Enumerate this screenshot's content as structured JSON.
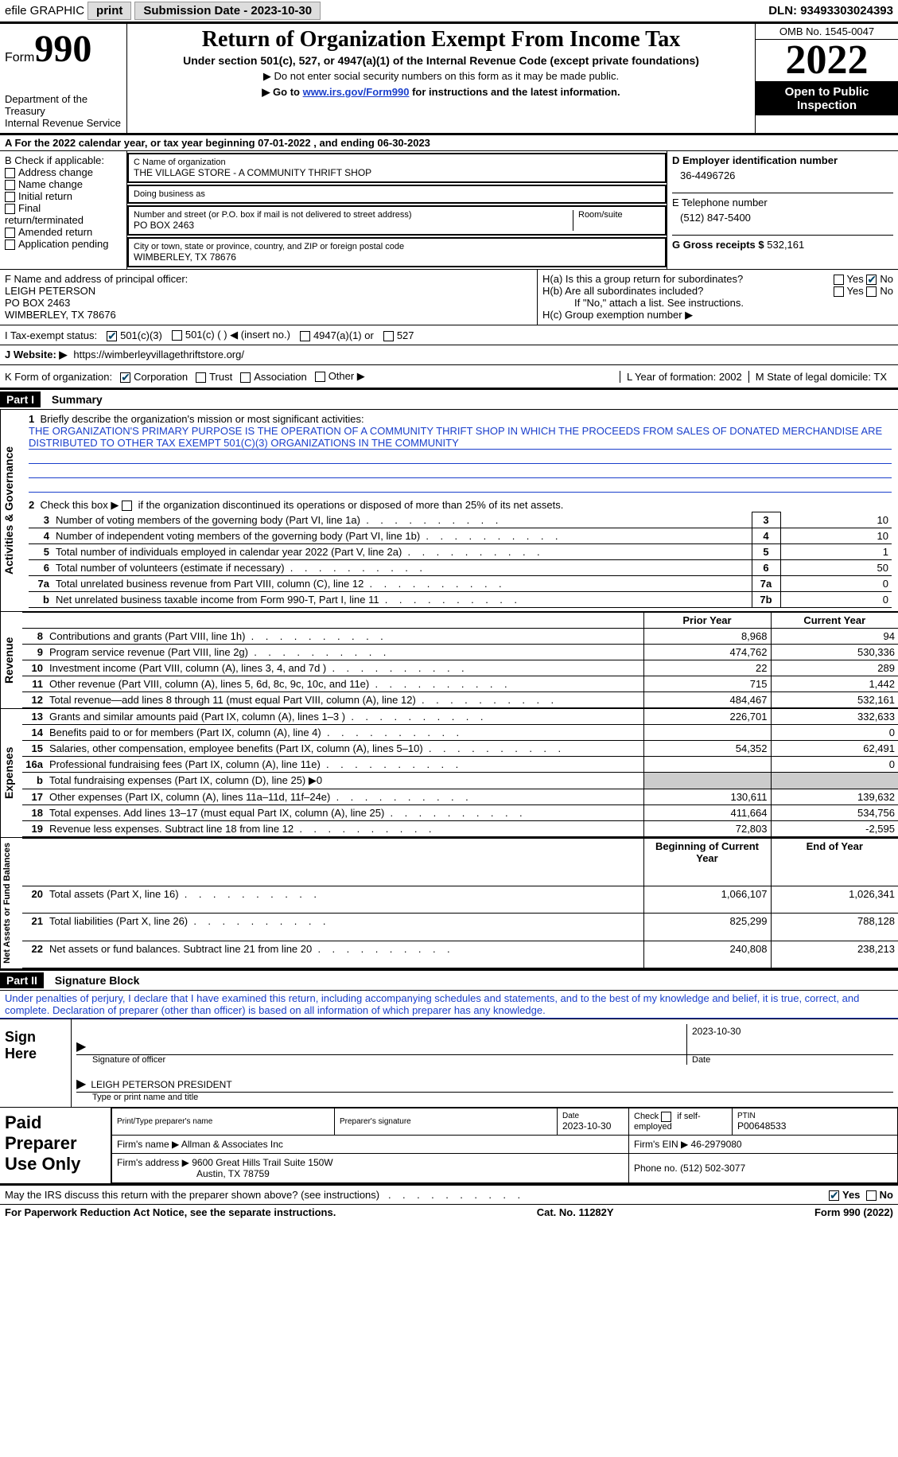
{
  "topbar": {
    "efile": "efile GRAPHIC",
    "print": "print",
    "submission_label": "Submission Date - 2023-10-30",
    "dln": "DLN: 93493303024393"
  },
  "header": {
    "form_word": "Form",
    "form_num": "990",
    "dept": "Department of the Treasury",
    "irs": "Internal Revenue Service",
    "title": "Return of Organization Exempt From Income Tax",
    "sub1": "Under section 501(c), 527, or 4947(a)(1) of the Internal Revenue Code (except private foundations)",
    "sub2": "▶ Do not enter social security numbers on this form as it may be made public.",
    "sub3_pre": "▶ Go to ",
    "sub3_link": "www.irs.gov/Form990",
    "sub3_post": " for instructions and the latest information.",
    "omb": "OMB No. 1545-0047",
    "year": "2022",
    "open": "Open to Public Inspection"
  },
  "line_a": "A  For the 2022 calendar year, or tax year beginning 07-01-2022    , and ending 06-30-2023",
  "block_b": {
    "label": "B Check if applicable:",
    "items": [
      "Address change",
      "Name change",
      "Initial return",
      "Final return/terminated",
      "Amended return",
      "Application pending"
    ]
  },
  "block_c": {
    "name_label": "C Name of organization",
    "name": "THE VILLAGE STORE - A COMMUNITY THRIFT SHOP",
    "dba_label": "Doing business as",
    "street_label": "Number and street (or P.O. box if mail is not delivered to street address)",
    "room_label": "Room/suite",
    "street": "PO BOX 2463",
    "city_label": "City or town, state or province, country, and ZIP or foreign postal code",
    "city": "WIMBERLEY, TX  78676"
  },
  "block_d": {
    "label": "D Employer identification number",
    "value": "36-4496726"
  },
  "block_e": {
    "label": "E Telephone number",
    "value": "(512) 847-5400"
  },
  "block_g": {
    "label": "G Gross receipts $",
    "value": "532,161"
  },
  "block_f": {
    "label": "F Name and address of principal officer:",
    "name": "LEIGH PETERSON",
    "street": "PO BOX 2463",
    "city": "WIMBERLEY, TX  78676"
  },
  "block_h": {
    "ha": "H(a)  Is this a group return for subordinates?",
    "hb": "H(b)  Are all subordinates included?",
    "hb_note": "If \"No,\" attach a list. See instructions.",
    "hc": "H(c)  Group exemption number ▶",
    "yes": "Yes",
    "no": "No"
  },
  "block_i": {
    "label": "I   Tax-exempt status:",
    "c3": "501(c)(3)",
    "c": "501(c) (  ) ◀ (insert no.)",
    "a1": "4947(a)(1) or",
    "s527": "527"
  },
  "block_j": {
    "label": "J   Website: ▶",
    "value": "https://wimberleyvillagethriftstore.org/"
  },
  "block_k": {
    "label": "K Form of organization:",
    "corp": "Corporation",
    "trust": "Trust",
    "assoc": "Association",
    "other": "Other ▶",
    "l_label": "L Year of formation:",
    "l_val": "2002",
    "m_label": "M State of legal domicile:",
    "m_val": "TX"
  },
  "part1": {
    "header": "Part I",
    "title": "Summary",
    "q1": "Briefly describe the organization's mission or most significant activities:",
    "mission": "THE ORGANIZATION'S PRIMARY PURPOSE IS THE OPERATION OF A COMMUNITY THRIFT SHOP IN WHICH THE PROCEEDS FROM SALES OF DONATED MERCHANDISE ARE DISTRIBUTED TO OTHER TAX EXEMPT 501(C)(3) ORGANIZATIONS IN THE COMMUNITY",
    "q2": "Check this box ▶    if the organization discontinued its operations or disposed of more than 25% of its net assets.",
    "lines": [
      {
        "n": "3",
        "t": "Number of voting members of the governing body (Part VI, line 1a)",
        "box": "3",
        "v": "10"
      },
      {
        "n": "4",
        "t": "Number of independent voting members of the governing body (Part VI, line 1b)",
        "box": "4",
        "v": "10"
      },
      {
        "n": "5",
        "t": "Total number of individuals employed in calendar year 2022 (Part V, line 2a)",
        "box": "5",
        "v": "1"
      },
      {
        "n": "6",
        "t": "Total number of volunteers (estimate if necessary)",
        "box": "6",
        "v": "50"
      },
      {
        "n": "7a",
        "t": "Total unrelated business revenue from Part VIII, column (C), line 12",
        "box": "7a",
        "v": "0"
      },
      {
        "n": "b",
        "t": "Net unrelated business taxable income from Form 990-T, Part I, line 11",
        "box": "7b",
        "v": "0"
      }
    ],
    "prior_head": "Prior Year",
    "curr_head": "Current Year",
    "rev": [
      {
        "n": "8",
        "t": "Contributions and grants (Part VIII, line 1h)",
        "p": "8,968",
        "c": "94"
      },
      {
        "n": "9",
        "t": "Program service revenue (Part VIII, line 2g)",
        "p": "474,762",
        "c": "530,336"
      },
      {
        "n": "10",
        "t": "Investment income (Part VIII, column (A), lines 3, 4, and 7d )",
        "p": "22",
        "c": "289"
      },
      {
        "n": "11",
        "t": "Other revenue (Part VIII, column (A), lines 5, 6d, 8c, 9c, 10c, and 11e)",
        "p": "715",
        "c": "1,442"
      },
      {
        "n": "12",
        "t": "Total revenue—add lines 8 through 11 (must equal Part VIII, column (A), line 12)",
        "p": "484,467",
        "c": "532,161"
      }
    ],
    "exp": [
      {
        "n": "13",
        "t": "Grants and similar amounts paid (Part IX, column (A), lines 1–3 )",
        "p": "226,701",
        "c": "332,633"
      },
      {
        "n": "14",
        "t": "Benefits paid to or for members (Part IX, column (A), line 4)",
        "p": "",
        "c": "0"
      },
      {
        "n": "15",
        "t": "Salaries, other compensation, employee benefits (Part IX, column (A), lines 5–10)",
        "p": "54,352",
        "c": "62,491"
      },
      {
        "n": "16a",
        "t": "Professional fundraising fees (Part IX, column (A), line 11e)",
        "p": "",
        "c": "0"
      },
      {
        "n": "b",
        "t": "Total fundraising expenses (Part IX, column (D), line 25) ▶0",
        "p": "",
        "c": "",
        "shaded": true
      },
      {
        "n": "17",
        "t": "Other expenses (Part IX, column (A), lines 11a–11d, 11f–24e)",
        "p": "130,611",
        "c": "139,632"
      },
      {
        "n": "18",
        "t": "Total expenses. Add lines 13–17 (must equal Part IX, column (A), line 25)",
        "p": "411,664",
        "c": "534,756"
      },
      {
        "n": "19",
        "t": "Revenue less expenses. Subtract line 18 from line 12",
        "p": "72,803",
        "c": "-2,595"
      }
    ],
    "bal_head1": "Beginning of Current Year",
    "bal_head2": "End of Year",
    "bal": [
      {
        "n": "20",
        "t": "Total assets (Part X, line 16)",
        "p": "1,066,107",
        "c": "1,026,341"
      },
      {
        "n": "21",
        "t": "Total liabilities (Part X, line 26)",
        "p": "825,299",
        "c": "788,128"
      },
      {
        "n": "22",
        "t": "Net assets or fund balances. Subtract line 21 from line 20",
        "p": "240,808",
        "c": "238,213"
      }
    ],
    "vtab_ag": "Activities & Governance",
    "vtab_rev": "Revenue",
    "vtab_exp": "Expenses",
    "vtab_na": "Net Assets or Fund Balances"
  },
  "part2": {
    "header": "Part II",
    "title": "Signature Block",
    "decl": "Under penalties of perjury, I declare that I have examined this return, including accompanying schedules and statements, and to the best of my knowledge and belief, it is true, correct, and complete. Declaration of preparer (other than officer) is based on all information of which preparer has any knowledge.",
    "sign_here": "Sign Here",
    "sig_officer": "Signature of officer",
    "date": "Date",
    "date_val": "2023-10-30",
    "name_title_lbl": "Type or print name and title",
    "name_title_val": "LEIGH PETERSON  PRESIDENT",
    "paid": "Paid Preparer Use Only",
    "prep_name_lbl": "Print/Type preparer's name",
    "prep_sig_lbl": "Preparer's signature",
    "prep_date_lbl": "Date",
    "prep_date": "2023-10-30",
    "self_emp": "Check       if self-employed",
    "ptin_lbl": "PTIN",
    "ptin": "P00648533",
    "firm_name_lbl": "Firm's name    ▶",
    "firm_name": "Allman & Associates Inc",
    "firm_ein_lbl": "Firm's EIN ▶",
    "firm_ein": "46-2979080",
    "firm_addr_lbl": "Firm's address ▶",
    "firm_addr": "9600 Great Hills Trail Suite 150W",
    "firm_addr2": "Austin, TX  78759",
    "phone_lbl": "Phone no.",
    "phone": "(512) 502-3077"
  },
  "footer": {
    "discuss": "May the IRS discuss this return with the preparer shown above? (see instructions)",
    "yes": "Yes",
    "no": "No",
    "paperwork": "For Paperwork Reduction Act Notice, see the separate instructions.",
    "cat": "Cat. No. 11282Y",
    "form": "Form 990 (2022)"
  },
  "colors": {
    "link": "#1a3fcc",
    "check": "#046"
  }
}
